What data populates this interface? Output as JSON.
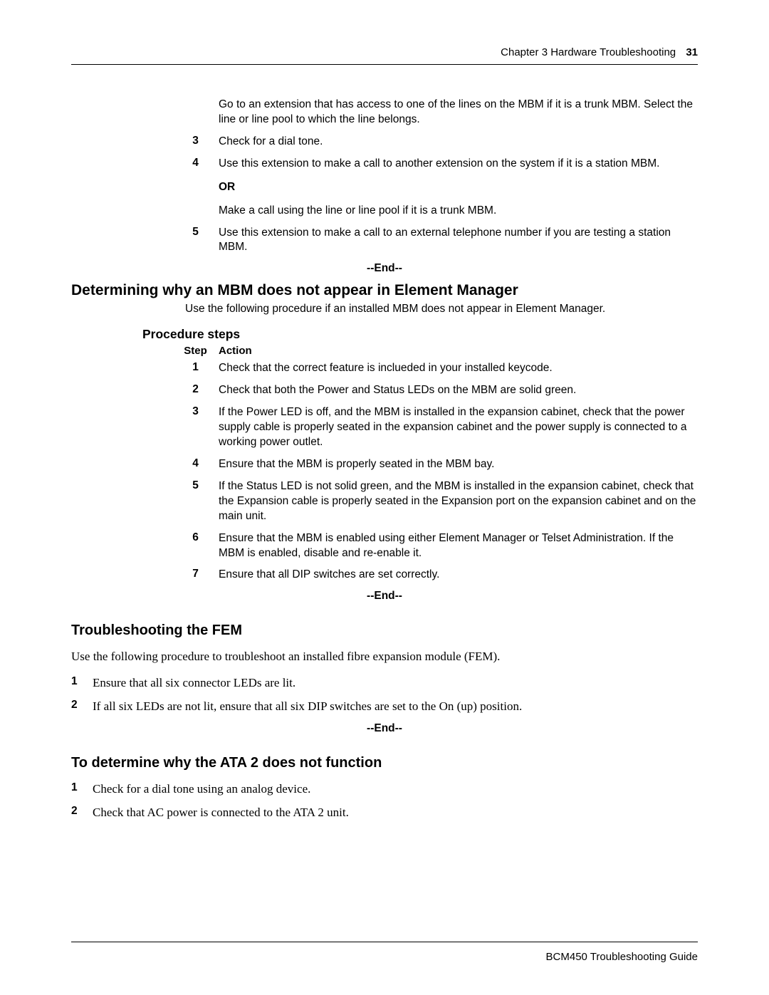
{
  "header": {
    "chapter": "Chapter 3  Hardware Troubleshooting",
    "page": "31"
  },
  "intro_para": "Go to an extension that has access to one of the lines on the MBM if it is a trunk MBM. Select the line or line pool to which the line belongs.",
  "topsteps": {
    "s3": {
      "num": "3",
      "text": "Check for a dial tone."
    },
    "s4": {
      "num": "4",
      "text": "Use this extension to make a call to another extension on the system if it is a station MBM.",
      "or": "OR",
      "alt": "Make a call using the line or line pool if it is a trunk MBM."
    },
    "s5": {
      "num": "5",
      "text": "Use this extension to make a call to an external telephone number if you are testing a station MBM."
    }
  },
  "end": "--End--",
  "h_mbm": "Determining why an MBM does not appear in Element Manager",
  "mbm_intro": "Use the following procedure if an installed MBM does not appear in Element Manager.",
  "proc_label": "Procedure steps",
  "th_step": "Step",
  "th_action": "Action",
  "mbmsteps": {
    "s1": {
      "num": "1",
      "text": "Check that the correct feature is inclueded in your installed keycode."
    },
    "s2": {
      "num": "2",
      "text": "Check that both the Power and Status LEDs on the MBM are solid green."
    },
    "s3": {
      "num": "3",
      "text": "If the Power LED is off, and the MBM is installed in the expansion cabinet, check that the power supply cable is properly seated in the expansion cabinet and the power supply is connected to a working power outlet."
    },
    "s4": {
      "num": "4",
      "text": "Ensure that the MBM is properly seated in the MBM bay."
    },
    "s5": {
      "num": "5",
      "text": "If the Status LED is not solid green, and the MBM is installed in the expansion cabinet, check that the Expansion cable is properly seated in the Expansion port on the expansion cabinet and on the main unit."
    },
    "s6": {
      "num": "6",
      "text": "Ensure that the MBM is enabled using either Element Manager or Telset Administration. If the MBM is enabled, disable and re-enable it."
    },
    "s7": {
      "num": "7",
      "text": "Ensure that all DIP switches are set correctly."
    }
  },
  "h_fem": "Troubleshooting the FEM",
  "fem_intro": "Use the following procedure to troubleshoot an installed fibre expansion module (FEM).",
  "femsteps": {
    "s1": {
      "num": "1",
      "text": "Ensure that all six connector LEDs are lit."
    },
    "s2": {
      "num": "2",
      "text": "If all six LEDs are not lit, ensure that all six DIP switches are set to the On (up) position."
    }
  },
  "h_ata": "To determine why the ATA 2 does not function",
  "atasteps": {
    "s1": {
      "num": "1",
      "text": "Check for a dial tone using an analog device."
    },
    "s2": {
      "num": "2",
      "text": "Check that AC power is connected to the ATA 2 unit."
    }
  },
  "footer": "BCM450 Troubleshooting Guide"
}
